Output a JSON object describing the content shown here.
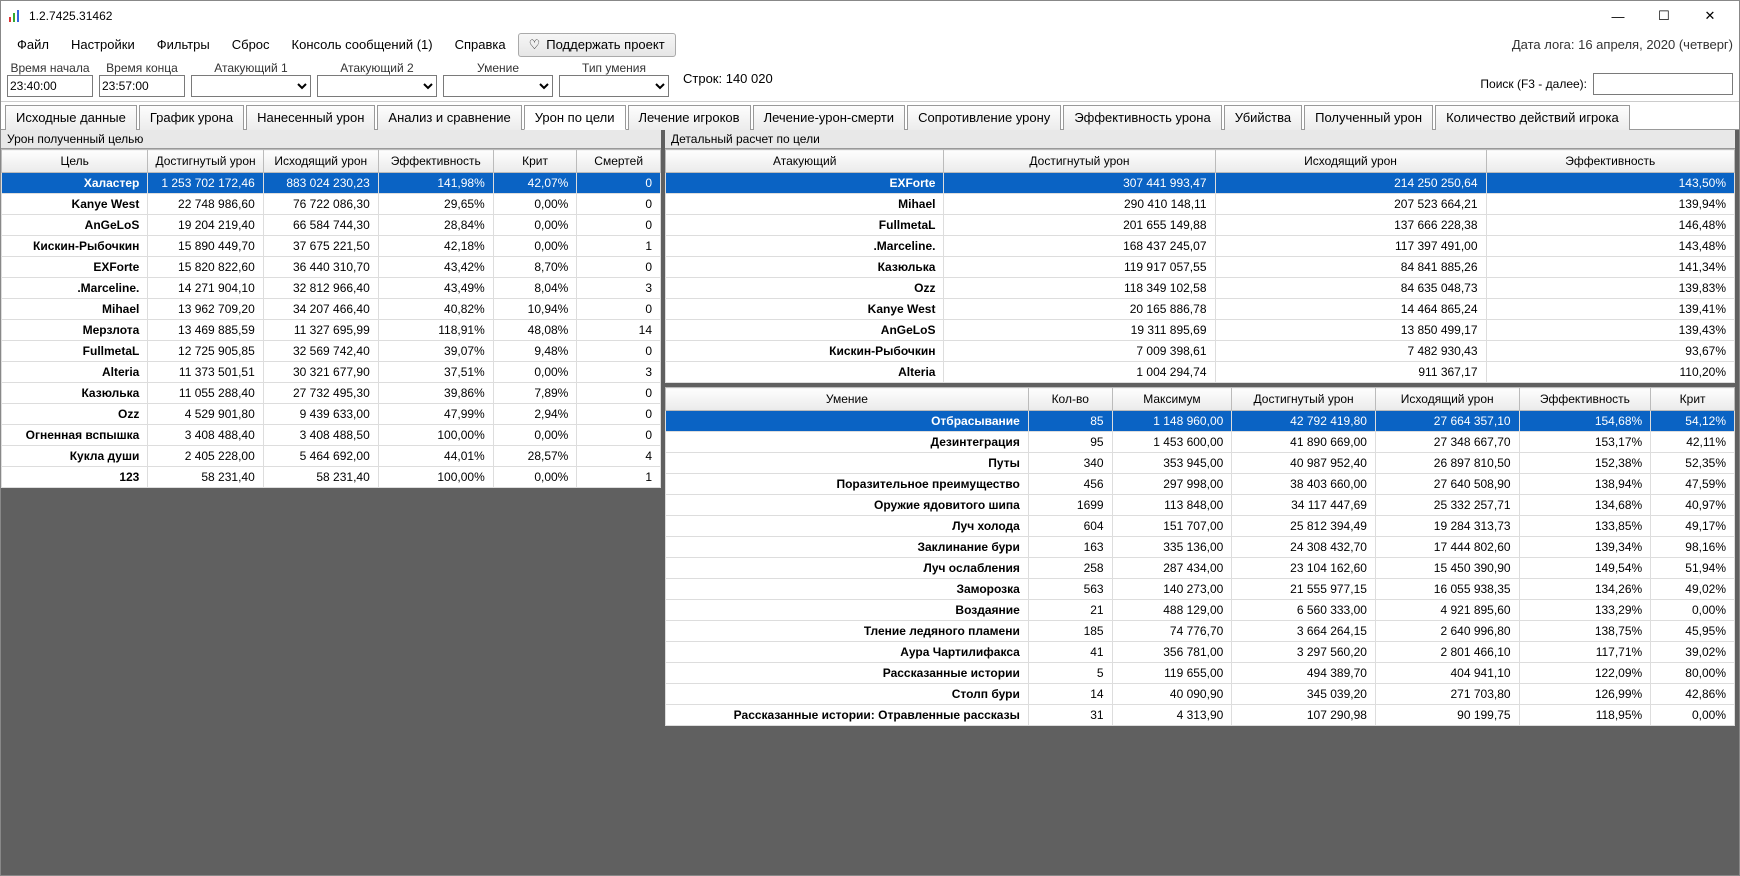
{
  "window": {
    "title": "1.2.7425.31462",
    "log_date": "Дата лога: 16 апреля, 2020  (четверг)"
  },
  "menu": {
    "file": "Файл",
    "settings": "Настройки",
    "filters": "Фильтры",
    "reset": "Сброс",
    "console": "Консоль сообщений (1)",
    "help": "Справка",
    "support": "Поддержать проект"
  },
  "filters": {
    "time_start_label": "Время начала",
    "time_start": "23:40:00",
    "time_end_label": "Время конца",
    "time_end": "23:57:00",
    "attacker1_label": "Атакующий 1",
    "attacker2_label": "Атакующий 2",
    "skill_label": "Умение",
    "skill_type_label": "Тип умения",
    "rows_label": "Строк: 140 020",
    "search_label": "Поиск (F3 - далее):"
  },
  "tabs": [
    "Исходные данные",
    "График урона",
    "Нанесенный урон",
    "Анализ и сравнение",
    "Урон по цели",
    "Лечение игроков",
    "Лечение-урон-смерти",
    "Сопротивление урону",
    "Эффективность урона",
    "Убийства",
    "Полученный урон",
    "Количество действий игрока"
  ],
  "active_tab_index": 4,
  "panes": {
    "left_title": "Урон полученный целью",
    "right_top_title": "Детальный расчет по цели"
  },
  "grid_left": {
    "columns": [
      "Цель",
      "Достигнутый урон",
      "Исходящий урон",
      "Эффективность",
      "Крит",
      "Смертей"
    ],
    "widths": [
      140,
      110,
      110,
      110,
      80,
      80
    ],
    "rows": [
      [
        "Халастер",
        "1 253 702 172,46",
        "883 024 230,23",
        "141,98%",
        "42,07%",
        "0"
      ],
      [
        "Kanye West",
        "22 748 986,60",
        "76 722 086,30",
        "29,65%",
        "0,00%",
        "0"
      ],
      [
        "AnGeLoS",
        "19 204 219,40",
        "66 584 744,30",
        "28,84%",
        "0,00%",
        "0"
      ],
      [
        "Кискин-Рыбочкин",
        "15 890 449,70",
        "37 675 221,50",
        "42,18%",
        "0,00%",
        "1"
      ],
      [
        "EXForte",
        "15 820 822,60",
        "36 440 310,70",
        "43,42%",
        "8,70%",
        "0"
      ],
      [
        ".Marceline.",
        "14 271 904,10",
        "32 812 966,40",
        "43,49%",
        "8,04%",
        "3"
      ],
      [
        "Mihael",
        "13 962 709,20",
        "34 207 466,40",
        "40,82%",
        "10,94%",
        "0"
      ],
      [
        "Мерзлота",
        "13 469 885,59",
        "11 327 695,99",
        "118,91%",
        "48,08%",
        "14"
      ],
      [
        "FullmetaL",
        "12 725 905,85",
        "32 569 742,40",
        "39,07%",
        "9,48%",
        "0"
      ],
      [
        "Alteria",
        "11 373 501,51",
        "30 321 677,90",
        "37,51%",
        "0,00%",
        "3"
      ],
      [
        "Казюлька",
        "11 055 288,40",
        "27 732 495,30",
        "39,86%",
        "7,89%",
        "0"
      ],
      [
        "Ozz",
        "4 529 901,80",
        "9 439 633,00",
        "47,99%",
        "2,94%",
        "0"
      ],
      [
        "Огненная вспышка",
        "3 408 488,40",
        "3 408 488,50",
        "100,00%",
        "0,00%",
        "0"
      ],
      [
        "Кукла души",
        "2 405 228,00",
        "5 464 692,00",
        "44,01%",
        "28,57%",
        "4"
      ],
      [
        "123",
        "58 231,40",
        "58 231,40",
        "100,00%",
        "0,00%",
        "1"
      ]
    ],
    "selected_row": 0
  },
  "grid_right_top": {
    "columns": [
      "Атакующий",
      "Достигнутый урон",
      "Исходящий урон",
      "Эффективность"
    ],
    "widths": [
      120,
      120,
      120,
      110
    ],
    "rows": [
      [
        "EXForte",
        "307 441 993,47",
        "214 250 250,64",
        "143,50%"
      ],
      [
        "Mihael",
        "290 410 148,11",
        "207 523 664,21",
        "139,94%"
      ],
      [
        "FullmetaL",
        "201 655 149,88",
        "137 666 228,38",
        "146,48%"
      ],
      [
        ".Marceline.",
        "168 437 245,07",
        "117 397 491,00",
        "143,48%"
      ],
      [
        "Казюлька",
        "119 917 057,55",
        "84 841 885,26",
        "141,34%"
      ],
      [
        "Ozz",
        "118 349 102,58",
        "84 635 048,73",
        "139,83%"
      ],
      [
        "Kanye West",
        "20 165 886,78",
        "14 464 865,24",
        "139,41%"
      ],
      [
        "AnGeLoS",
        "19 311 895,69",
        "13 850 499,17",
        "139,43%"
      ],
      [
        "Кискин-Рыбочкин",
        "7 009 398,61",
        "7 482 930,43",
        "93,67%"
      ],
      [
        "Alteria",
        "1 004 294,74",
        "911 367,17",
        "110,20%"
      ]
    ],
    "selected_row": 0
  },
  "grid_right_bottom": {
    "columns": [
      "Умение",
      "Кол-во",
      "Максимум",
      "Достигнутый урон",
      "Исходящий урон",
      "Эффективность",
      "Крит"
    ],
    "widths": [
      260,
      70,
      100,
      120,
      120,
      110,
      70
    ],
    "rows": [
      [
        "Отбрасывание",
        "85",
        "1 148 960,00",
        "42 792 419,80",
        "27 664 357,10",
        "154,68%",
        "54,12%"
      ],
      [
        "Дезинтеграция",
        "95",
        "1 453 600,00",
        "41 890 669,00",
        "27 348 667,70",
        "153,17%",
        "42,11%"
      ],
      [
        "Путы",
        "340",
        "353 945,00",
        "40 987 952,40",
        "26 897 810,50",
        "152,38%",
        "52,35%"
      ],
      [
        "Поразительное преимущество",
        "456",
        "297 998,00",
        "38 403 660,00",
        "27 640 508,90",
        "138,94%",
        "47,59%"
      ],
      [
        "Оружие ядовитого шипа",
        "1699",
        "113 848,00",
        "34 117 447,69",
        "25 332 257,71",
        "134,68%",
        "40,97%"
      ],
      [
        "Луч холода",
        "604",
        "151 707,00",
        "25 812 394,49",
        "19 284 313,73",
        "133,85%",
        "49,17%"
      ],
      [
        "Заклинание бури",
        "163",
        "335 136,00",
        "24 308 432,70",
        "17 444 802,60",
        "139,34%",
        "98,16%"
      ],
      [
        "Луч ослабления",
        "258",
        "287 434,00",
        "23 104 162,60",
        "15 450 390,90",
        "149,54%",
        "51,94%"
      ],
      [
        "Заморозка",
        "563",
        "140 273,00",
        "21 555 977,15",
        "16 055 938,35",
        "134,26%",
        "49,02%"
      ],
      [
        "Воздаяние",
        "21",
        "488 129,00",
        "6 560 333,00",
        "4 921 895,60",
        "133,29%",
        "0,00%"
      ],
      [
        "Тление ледяного пламени",
        "185",
        "74 776,70",
        "3 664 264,15",
        "2 640 996,80",
        "138,75%",
        "45,95%"
      ],
      [
        "Аура Чартилифакса",
        "41",
        "356 781,00",
        "3 297 560,20",
        "2 801 466,10",
        "117,71%",
        "39,02%"
      ],
      [
        "Рассказанные истории",
        "5",
        "119 655,00",
        "494 389,70",
        "404 941,10",
        "122,09%",
        "80,00%"
      ],
      [
        "Столп бури",
        "14",
        "40 090,90",
        "345 039,20",
        "271 703,80",
        "126,99%",
        "42,86%"
      ],
      [
        "Рассказанные истории: Отравленные рассказы",
        "31",
        "4 313,90",
        "107 290,98",
        "90 199,75",
        "118,95%",
        "0,00%"
      ]
    ],
    "selected_row": 0
  },
  "colors": {
    "selection": "#0a63c4",
    "selection_text": "#ffffff",
    "pane_bg": "#606060",
    "header_grad_top": "#fefefe",
    "header_grad_bot": "#eaeaea"
  }
}
